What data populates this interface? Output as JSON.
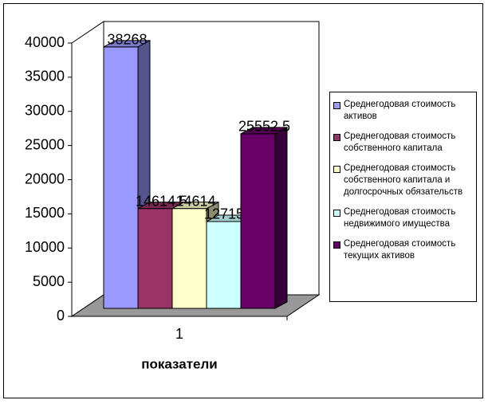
{
  "chart_data": {
    "type": "bar3d",
    "categories": [
      "1"
    ],
    "x_label": "показатели",
    "ylim": [
      0,
      40000
    ],
    "yticks": [
      0,
      5000,
      10000,
      15000,
      20000,
      25000,
      30000,
      35000,
      40000
    ],
    "legend": "right",
    "series": [
      {
        "name": "Среднегодовая стоимость активов",
        "color": "#9999ff",
        "values": [
          38268
        ]
      },
      {
        "name": "Среднегодовая стоимость собственного капитала",
        "color": "#993366",
        "values": [
          14614.5
        ]
      },
      {
        "name": "Среднегодовая стоимость собственного капитала и долгосрочных обязательств",
        "color": "#ffffcc",
        "values": [
          14614
        ]
      },
      {
        "name": "Среднегодовая стоимость недвижимого имущества",
        "color": "#ccffff",
        "values": [
          12715.5
        ]
      },
      {
        "name": "Среднегодовая стоимость текущих активов",
        "color": "#660066",
        "values": [
          25552.5
        ]
      }
    ]
  }
}
